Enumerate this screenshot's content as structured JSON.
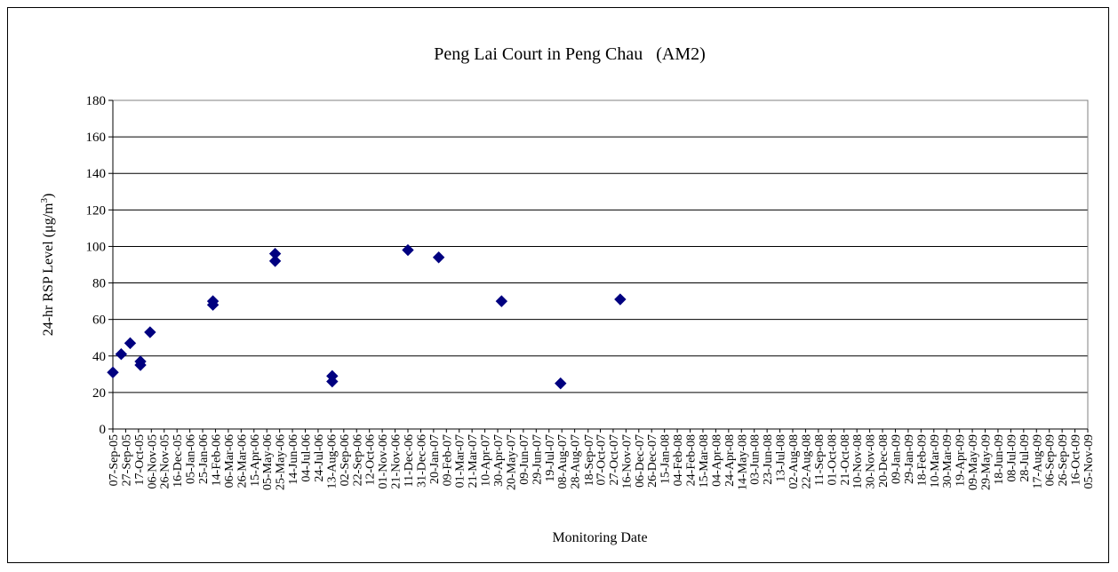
{
  "chart_data": {
    "type": "scatter",
    "title": "Peng Lai Court in Peng Chau   (AM2)",
    "xlabel": "Monitoring Date",
    "ylabel_main": "24-hr RSP Level (μg/m",
    "ylabel_sup": "3",
    "ylabel_close": ")",
    "ylim": [
      0,
      180
    ],
    "yticks": [
      0,
      20,
      40,
      60,
      80,
      100,
      120,
      140,
      160,
      180
    ],
    "grid": true,
    "legend": "none",
    "marker_color": "#000080",
    "x_categories": [
      "07-Sep-05",
      "27-Sep-05",
      "17-Oct-05",
      "06-Nov-05",
      "26-Nov-05",
      "16-Dec-05",
      "05-Jan-06",
      "25-Jan-06",
      "14-Feb-06",
      "06-Mar-06",
      "26-Mar-06",
      "15-Apr-06",
      "05-May-06",
      "25-May-06",
      "14-Jun-06",
      "04-Jul-06",
      "24-Jul-06",
      "13-Aug-06",
      "02-Sep-06",
      "22-Sep-06",
      "12-Oct-06",
      "01-Nov-06",
      "21-Nov-06",
      "11-Dec-06",
      "31-Dec-06",
      "20-Jan-07",
      "09-Feb-07",
      "01-Mar-07",
      "21-Mar-07",
      "10-Apr-07",
      "30-Apr-07",
      "20-May-07",
      "09-Jun-07",
      "29-Jun-07",
      "19-Jul-07",
      "08-Aug-07",
      "28-Aug-07",
      "18-Sep-07",
      "07-Oct-07",
      "27-Oct-07",
      "16-Nov-07",
      "06-Dec-07",
      "26-Dec-07",
      "15-Jan-08",
      "04-Feb-08",
      "24-Feb-08",
      "15-Mar-08",
      "04-Apr-08",
      "24-Apr-08",
      "14-May-08",
      "03-Jun-08",
      "23-Jun-08",
      "13-Jul-08",
      "02-Aug-08",
      "22-Aug-08",
      "11-Sep-08",
      "01-Oct-08",
      "21-Oct-08",
      "10-Nov-08",
      "30-Nov-08",
      "20-Dec-08",
      "09-Jan-09",
      "29-Jan-09",
      "18-Feb-09",
      "10-Mar-09",
      "30-Mar-09",
      "19-Apr-09",
      "09-May-09",
      "29-May-09",
      "18-Jun-09",
      "08-Jul-09",
      "28-Jul-09",
      "17-Aug-09",
      "06-Sep-09",
      "26-Sep-09",
      "16-Oct-09",
      "05-Nov-09"
    ],
    "points": [
      {
        "x": "2005-09-07",
        "y": 31
      },
      {
        "x": "2005-09-20",
        "y": 41
      },
      {
        "x": "2005-10-04",
        "y": 47
      },
      {
        "x": "2005-10-20",
        "y": 37
      },
      {
        "x": "2005-10-20",
        "y": 35
      },
      {
        "x": "2005-11-04",
        "y": 53
      },
      {
        "x": "2006-02-10",
        "y": 70
      },
      {
        "x": "2006-02-10",
        "y": 68
      },
      {
        "x": "2006-05-18",
        "y": 96
      },
      {
        "x": "2006-05-18",
        "y": 92
      },
      {
        "x": "2006-08-15",
        "y": 29
      },
      {
        "x": "2006-08-15",
        "y": 26
      },
      {
        "x": "2006-12-11",
        "y": 98
      },
      {
        "x": "2007-01-28",
        "y": 94
      },
      {
        "x": "2007-05-06",
        "y": 70
      },
      {
        "x": "2007-08-06",
        "y": 25
      },
      {
        "x": "2007-11-07",
        "y": 71
      }
    ]
  }
}
